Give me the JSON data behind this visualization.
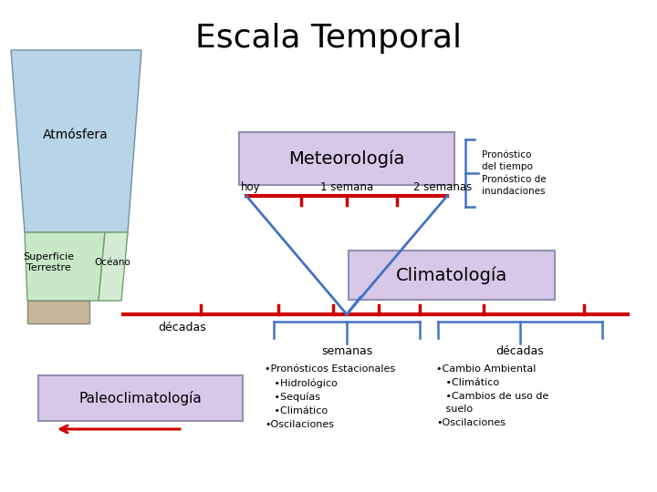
{
  "title": "Escala Temporal",
  "title_fontsize": 26,
  "bg_color": "#ffffff",
  "atm_color": "#b8d4e8",
  "surf_color": "#c8e8c8",
  "ocean_color": "#d4ecd4",
  "paleo_small_color": "#c8b89a",
  "box_fill": "#d8c8e8",
  "box_edge": "#9090b0",
  "red_color": "#cc0000",
  "blue_color": "#4472c4",
  "text_labels": {
    "atmosfera": "Atmósfera",
    "superficie": "Superficie\nTerrestre",
    "oceano": "Océano",
    "meteorologia": "Meteorología",
    "climatologia": "Climatología",
    "paleoclimatologia": "Paleoclimatología",
    "hoy": "hoy",
    "semana1": "1 semana",
    "semanas2": "2 semanas",
    "decadas_left": "décadas",
    "semanas_mid": "semanas",
    "decadas_right": "décadas",
    "pronostico": "Pronóstico\ndel tiempo\nPronóstico de\ninundaciones",
    "bullet_left": "•Pronósticos Estacionales\n   •Hidrológico\n   •Sequías\n   •Climático\n•Oscilaciones",
    "bullet_right": "•Cambio Ambiental\n   •Climático\n   •Cambios de uso de\n   suelo\n•Oscilaciones"
  }
}
